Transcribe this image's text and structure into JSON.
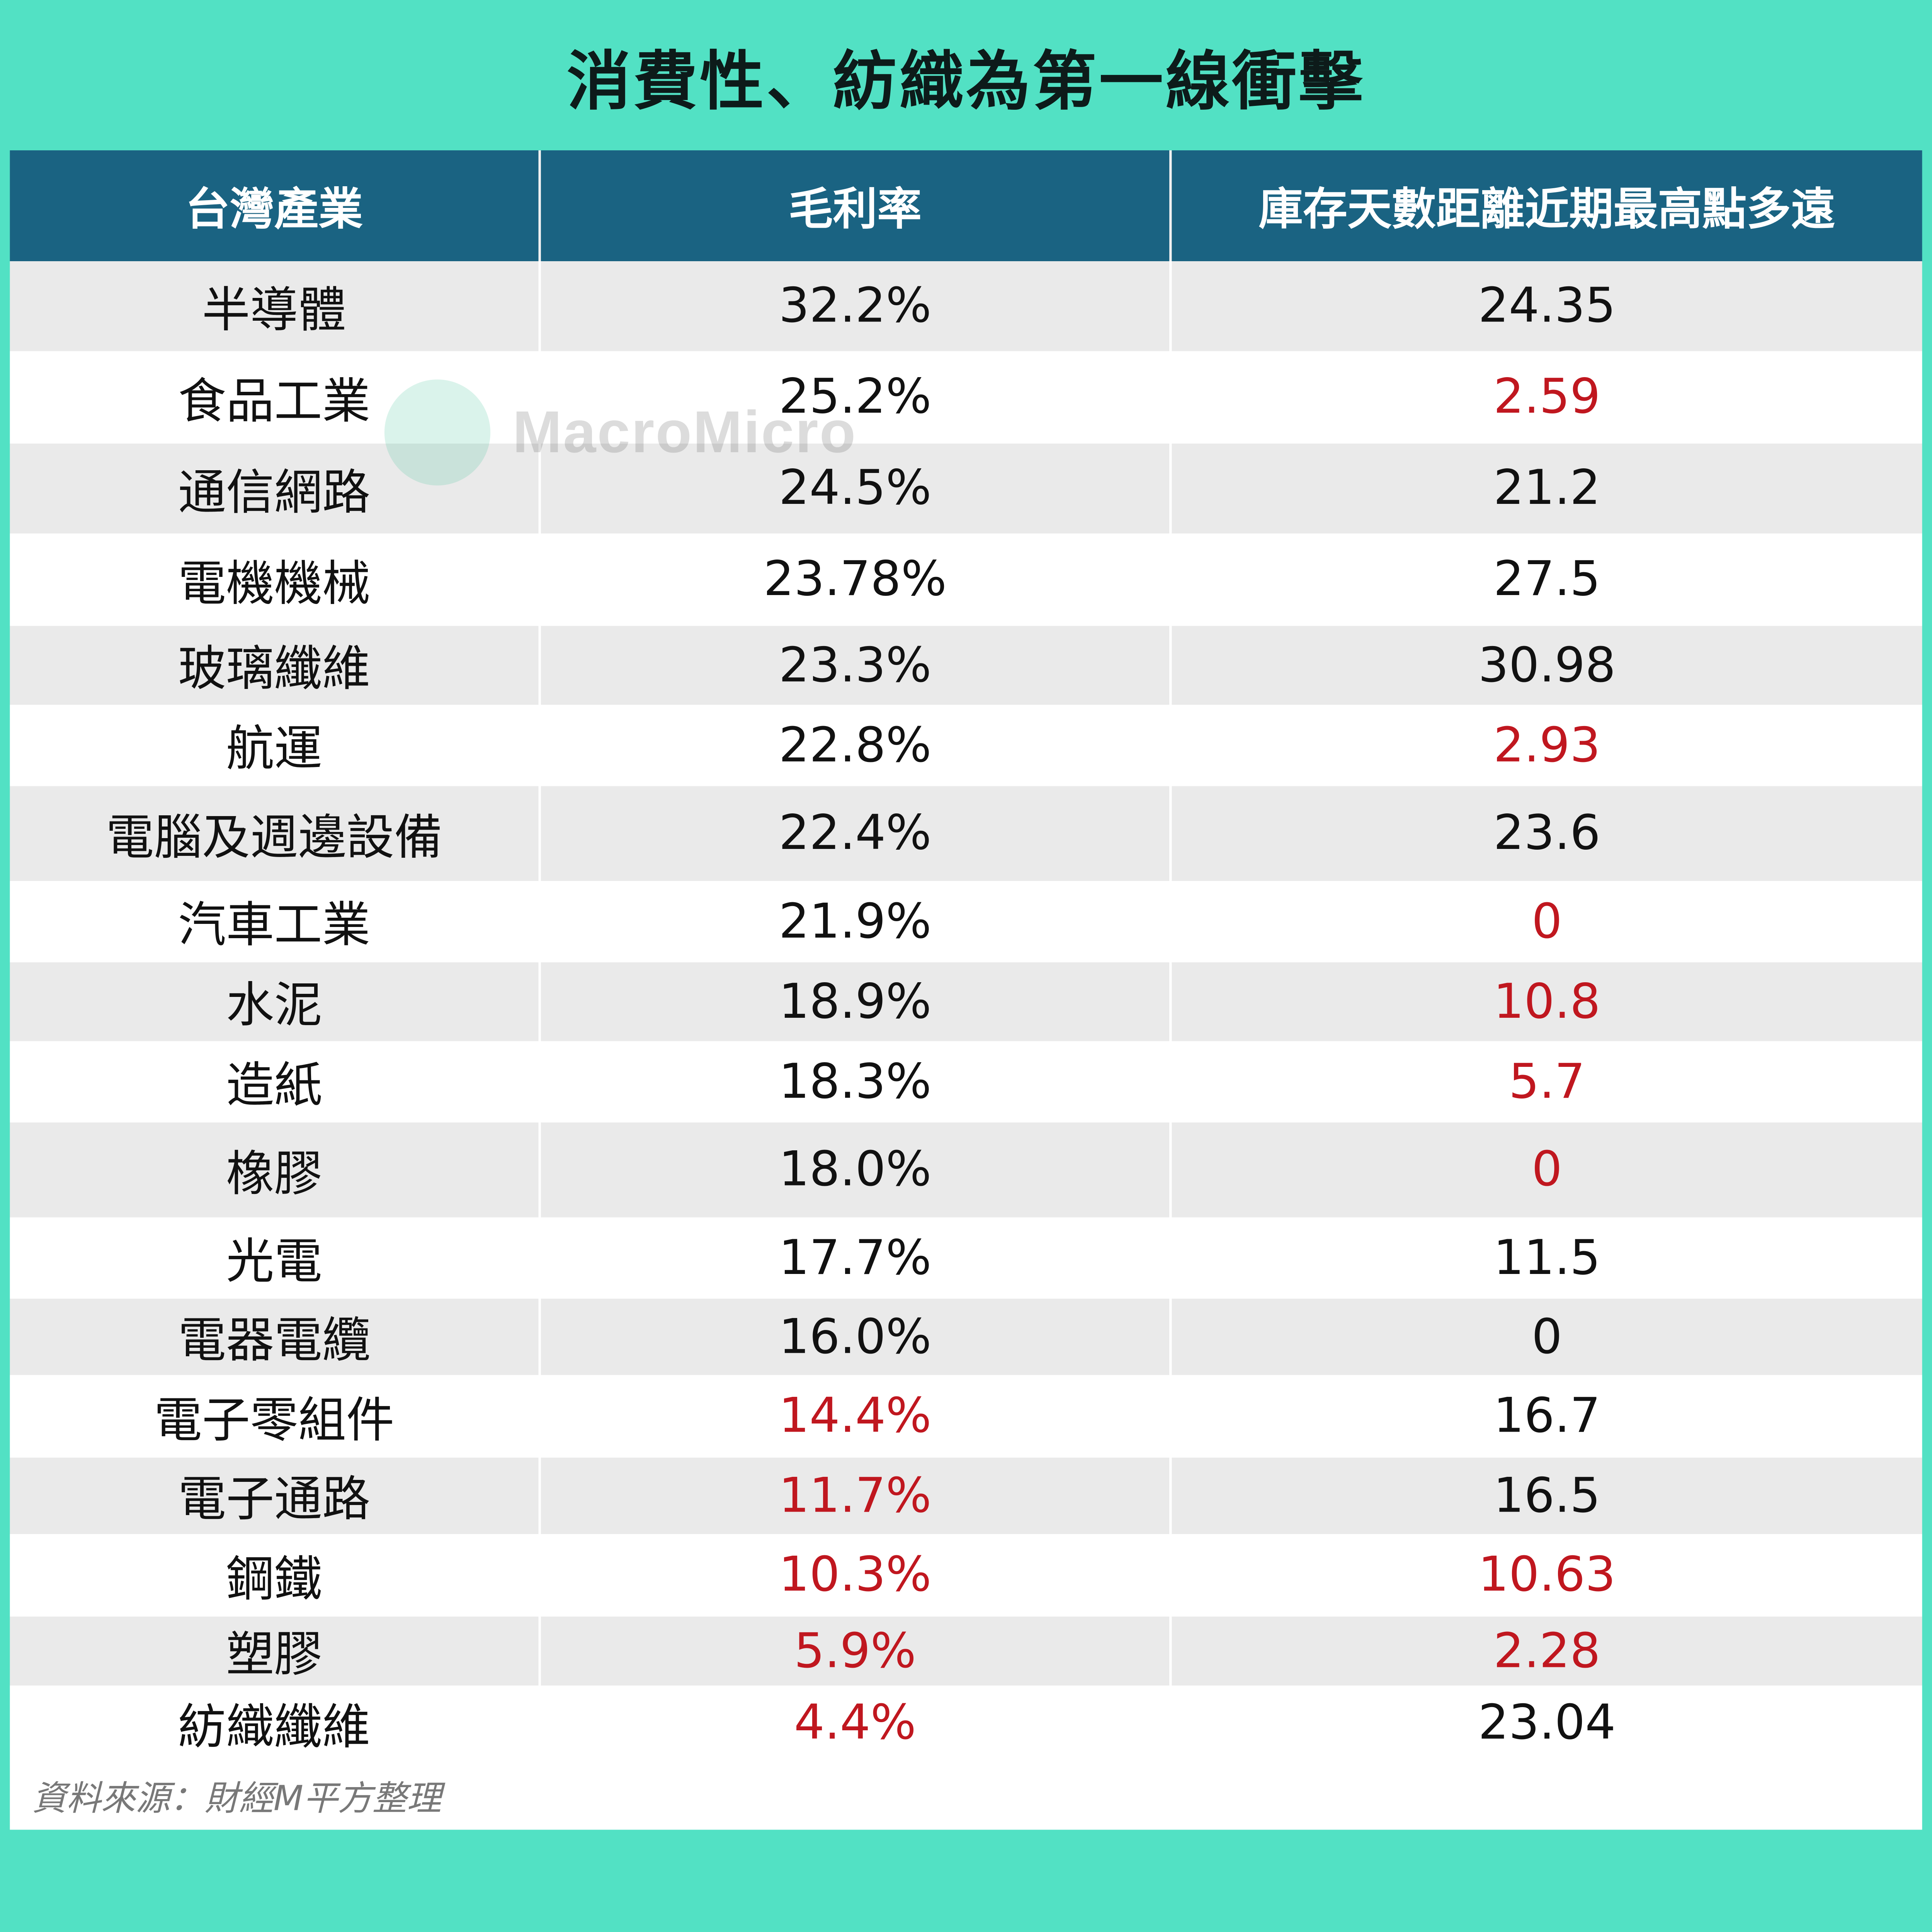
{
  "title": "消費性、紡織為第一線衝擊",
  "watermark": "MacroMicro",
  "table": {
    "headers": [
      "台灣產業",
      "毛利率",
      "庫存天數距離近期最高點多遠"
    ],
    "rows": [
      {
        "industry": "半導體",
        "margin": "32.2%",
        "days": "24.35",
        "margin_red": false,
        "days_red": false
      },
      {
        "industry": "食品工業",
        "margin": "25.2%",
        "days": "2.59",
        "margin_red": false,
        "days_red": true
      },
      {
        "industry": "通信網路",
        "margin": "24.5%",
        "days": "21.2",
        "margin_red": false,
        "days_red": false
      },
      {
        "industry": "電機機械",
        "margin": "23.78%",
        "days": "27.5",
        "margin_red": false,
        "days_red": false
      },
      {
        "industry": "玻璃纖維",
        "margin": "23.3%",
        "days": "30.98",
        "margin_red": false,
        "days_red": false
      },
      {
        "industry": "航運",
        "margin": "22.8%",
        "days": "2.93",
        "margin_red": false,
        "days_red": true
      },
      {
        "industry": "電腦及週邊設備",
        "margin": "22.4%",
        "days": "23.6",
        "margin_red": false,
        "days_red": false
      },
      {
        "industry": "汽車工業",
        "margin": "21.9%",
        "days": "0",
        "margin_red": false,
        "days_red": true
      },
      {
        "industry": "水泥",
        "margin": "18.9%",
        "days": "10.8",
        "margin_red": false,
        "days_red": true
      },
      {
        "industry": "造紙",
        "margin": "18.3%",
        "days": "5.7",
        "margin_red": false,
        "days_red": true
      },
      {
        "industry": "橡膠",
        "margin": "18.0%",
        "days": "0",
        "margin_red": false,
        "days_red": true
      },
      {
        "industry": "光電",
        "margin": "17.7%",
        "days": "11.5",
        "margin_red": false,
        "days_red": false
      },
      {
        "industry": "電器電纜",
        "margin": "16.0%",
        "days": "0",
        "margin_red": false,
        "days_red": false
      },
      {
        "industry": "電子零組件",
        "margin": "14.4%",
        "days": "16.7",
        "margin_red": true,
        "days_red": false
      },
      {
        "industry": "電子通路",
        "margin": "11.7%",
        "days": "16.5",
        "margin_red": true,
        "days_red": false
      },
      {
        "industry": "鋼鐵",
        "margin": "10.3%",
        "days": "10.63",
        "margin_red": true,
        "days_red": true
      },
      {
        "industry": "塑膠",
        "margin": "5.9%",
        "days": "2.28",
        "margin_red": true,
        "days_red": true
      },
      {
        "industry": "紡織纖維",
        "margin": "4.4%",
        "days": "23.04",
        "margin_red": true,
        "days_red": false
      }
    ]
  },
  "source": "資料來源：財經M平方整理",
  "colors": {
    "frame": "#52e1c4",
    "header": "#1a6382",
    "negative": "#c0171f",
    "stripe": "#eaeaea"
  }
}
